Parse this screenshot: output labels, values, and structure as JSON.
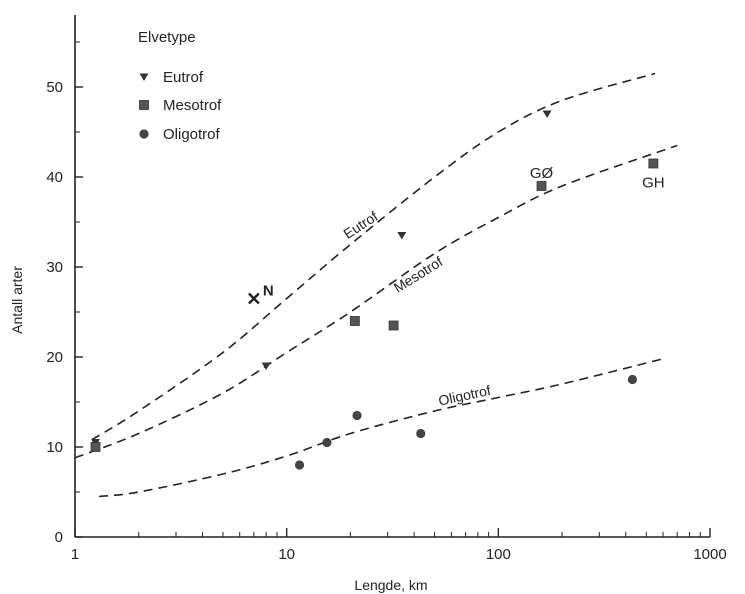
{
  "chart_data": {
    "type": "scatter",
    "title": "",
    "xlabel": "Lengde, km",
    "ylabel": "Antall arter",
    "x_scale": "log",
    "xlim": [
      1,
      1000
    ],
    "ylim": [
      0,
      58
    ],
    "x_ticks": [
      1,
      10,
      100,
      1000
    ],
    "x_tick_labels": [
      "1",
      "10",
      "100",
      "1000"
    ],
    "y_ticks": [
      0,
      10,
      20,
      30,
      40,
      50
    ],
    "y_tick_labels": [
      "0",
      "10",
      "20",
      "30",
      "40",
      "50"
    ],
    "grid": false,
    "legend": {
      "title": "Elvetype",
      "position": "top-left",
      "entries": [
        {
          "label": "Eutrof",
          "marker": "triangle-down"
        },
        {
          "label": "Mesotrof",
          "marker": "square"
        },
        {
          "label": "Oligotrof",
          "marker": "circle"
        }
      ]
    },
    "series": [
      {
        "name": "Eutrof",
        "marker": "triangle-down",
        "points": [
          {
            "x": 1.25,
            "y": 10.5
          },
          {
            "x": 8,
            "y": 19
          },
          {
            "x": 35,
            "y": 33.5
          },
          {
            "x": 170,
            "y": 47
          }
        ]
      },
      {
        "name": "Mesotrof",
        "marker": "square",
        "points": [
          {
            "x": 1.25,
            "y": 10
          },
          {
            "x": 21,
            "y": 24
          },
          {
            "x": 32,
            "y": 23.5
          },
          {
            "x": 160,
            "y": 39
          },
          {
            "x": 540,
            "y": 41.5
          }
        ]
      },
      {
        "name": "Oligotrof",
        "marker": "circle",
        "points": [
          {
            "x": 11.5,
            "y": 8
          },
          {
            "x": 15.5,
            "y": 10.5
          },
          {
            "x": 21.5,
            "y": 13.5
          },
          {
            "x": 43,
            "y": 11.5
          },
          {
            "x": 430,
            "y": 17.5
          }
        ]
      }
    ],
    "fit_curves": [
      {
        "label": "Eutrof",
        "style": "dashed",
        "points": [
          [
            1.2,
            10.8
          ],
          [
            2,
            14
          ],
          [
            5,
            20.5
          ],
          [
            10,
            26.5
          ],
          [
            20,
            32.5
          ],
          [
            50,
            40
          ],
          [
            100,
            45
          ],
          [
            200,
            48.5
          ],
          [
            550,
            51.5
          ]
        ]
      },
      {
        "label": "Mesotrof",
        "style": "dashed",
        "points": [
          [
            1.0,
            8.8
          ],
          [
            2,
            11.5
          ],
          [
            5,
            16
          ],
          [
            10,
            20.5
          ],
          [
            20,
            25
          ],
          [
            50,
            31.5
          ],
          [
            100,
            35.5
          ],
          [
            200,
            39
          ],
          [
            700,
            43.5
          ]
        ]
      },
      {
        "label": "Oligotrof",
        "style": "dashed",
        "points": [
          [
            1.3,
            4.5
          ],
          [
            2,
            5
          ],
          [
            5,
            7
          ],
          [
            10,
            9
          ],
          [
            20,
            11.5
          ],
          [
            50,
            14
          ],
          [
            100,
            15.5
          ],
          [
            200,
            17
          ],
          [
            600,
            19.8
          ]
        ]
      }
    ],
    "annotations": [
      {
        "text": "N",
        "x": 7,
        "y": 26.5,
        "marker": "x"
      },
      {
        "text": "GØ",
        "x": 160,
        "y": 39
      },
      {
        "text": "GH",
        "x": 540,
        "y": 41.5
      }
    ]
  }
}
